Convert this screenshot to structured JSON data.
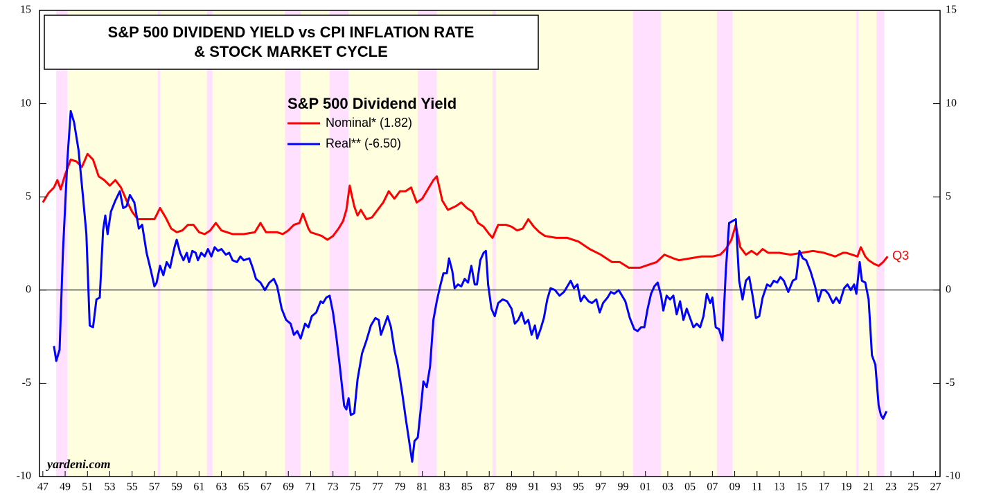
{
  "chart_data": {
    "type": "line",
    "title": [
      "S&P 500 DIVIDEND YIELD vs CPI INFLATION RATE",
      "& STOCK MARKET CYCLE"
    ],
    "legend_title": "S&P 500 Dividend Yield",
    "annotation": "Q3",
    "source": "yardeni.com",
    "xlim": [
      1946.7,
      2027.4
    ],
    "xticks": [
      {
        "value": 1947,
        "label": "47"
      },
      {
        "value": 1949,
        "label": "49"
      },
      {
        "value": 1951,
        "label": "51"
      },
      {
        "value": 1953,
        "label": "53"
      },
      {
        "value": 1955,
        "label": "55"
      },
      {
        "value": 1957,
        "label": "57"
      },
      {
        "value": 1959,
        "label": "59"
      },
      {
        "value": 1961,
        "label": "61"
      },
      {
        "value": 1963,
        "label": "63"
      },
      {
        "value": 1965,
        "label": "65"
      },
      {
        "value": 1967,
        "label": "67"
      },
      {
        "value": 1969,
        "label": "69"
      },
      {
        "value": 1971,
        "label": "71"
      },
      {
        "value": 1973,
        "label": "73"
      },
      {
        "value": 1975,
        "label": "75"
      },
      {
        "value": 1977,
        "label": "77"
      },
      {
        "value": 1979,
        "label": "79"
      },
      {
        "value": 1981,
        "label": "81"
      },
      {
        "value": 1983,
        "label": "83"
      },
      {
        "value": 1985,
        "label": "85"
      },
      {
        "value": 1987,
        "label": "87"
      },
      {
        "value": 1989,
        "label": "89"
      },
      {
        "value": 1991,
        "label": "91"
      },
      {
        "value": 1993,
        "label": "93"
      },
      {
        "value": 1995,
        "label": "95"
      },
      {
        "value": 1997,
        "label": "97"
      },
      {
        "value": 1999,
        "label": "99"
      },
      {
        "value": 2001,
        "label": "01"
      },
      {
        "value": 2003,
        "label": "03"
      },
      {
        "value": 2005,
        "label": "05"
      },
      {
        "value": 2007,
        "label": "07"
      },
      {
        "value": 2009,
        "label": "09"
      },
      {
        "value": 2011,
        "label": "11"
      },
      {
        "value": 2013,
        "label": "13"
      },
      {
        "value": 2015,
        "label": "15"
      },
      {
        "value": 2017,
        "label": "17"
      },
      {
        "value": 2019,
        "label": "19"
      },
      {
        "value": 2021,
        "label": "21"
      },
      {
        "value": 2023,
        "label": "23"
      },
      {
        "value": 2025,
        "label": "25"
      },
      {
        "value": 2027,
        "label": "27"
      }
    ],
    "ylim": [
      -10,
      15
    ],
    "yticks": [
      -10,
      -5,
      0,
      5,
      10,
      15
    ],
    "y2lim": [
      -10,
      15
    ],
    "y2ticks": [
      -10,
      -5,
      0,
      5,
      10,
      15
    ],
    "hline": 0,
    "background_band": {
      "color": "#ffffe0",
      "range": [
        1948.2,
        2022.4
      ]
    },
    "bands": {
      "color": "#ffe0ff",
      "ranges": [
        [
          1948.2,
          1949.2
        ],
        [
          1957.3,
          1957.5
        ],
        [
          1961.7,
          1962.2
        ],
        [
          1968.7,
          1970.1
        ],
        [
          1972.7,
          1974.4
        ],
        [
          1980.6,
          1982.3
        ],
        [
          1987.3,
          1987.6
        ],
        [
          1999.9,
          2002.4
        ],
        [
          2007.4,
          2008.8
        ],
        [
          2019.9,
          2020.1
        ],
        [
          2021.7,
          2022.4
        ]
      ]
    },
    "series": [
      {
        "name": "Nominal* (1.82)",
        "color": "#ff0000",
        "x": [
          1947.0,
          1947.5,
          1948.0,
          1948.3,
          1948.6,
          1949.0,
          1949.5,
          1950.0,
          1950.5,
          1951.0,
          1951.5,
          1952.0,
          1952.5,
          1953.0,
          1953.5,
          1954.0,
          1954.5,
          1955.0,
          1955.5,
          1956.0,
          1956.5,
          1957.0,
          1957.5,
          1958.0,
          1958.5,
          1959.0,
          1959.5,
          1960.0,
          1960.5,
          1961.0,
          1961.5,
          1962.0,
          1962.5,
          1963.0,
          1963.5,
          1964.0,
          1965.0,
          1966.0,
          1966.5,
          1967.0,
          1968.0,
          1968.5,
          1969.0,
          1969.5,
          1970.0,
          1970.3,
          1970.8,
          1971.0,
          1971.5,
          1972.0,
          1972.5,
          1973.0,
          1973.5,
          1973.9,
          1974.2,
          1974.5,
          1974.9,
          1975.2,
          1975.5,
          1976.0,
          1976.5,
          1977.0,
          1977.5,
          1978.0,
          1978.5,
          1979.0,
          1979.5,
          1980.0,
          1980.5,
          1981.0,
          1981.5,
          1982.0,
          1982.3,
          1982.8,
          1983.3,
          1984.0,
          1984.5,
          1985.0,
          1985.5,
          1986.0,
          1986.5,
          1987.0,
          1987.3,
          1987.8,
          1988.5,
          1989.0,
          1989.5,
          1990.0,
          1990.5,
          1991.0,
          1991.5,
          1992.0,
          1993.0,
          1994.0,
          1995.0,
          1996.0,
          1997.0,
          1998.0,
          1998.7,
          1999.5,
          2000.5,
          2001.0,
          2001.5,
          2002.0,
          2002.7,
          2003.5,
          2004.0,
          2005.0,
          2006.0,
          2007.0,
          2007.7,
          2008.2,
          2008.7,
          2009.1,
          2009.5,
          2010.0,
          2010.5,
          2011.0,
          2011.5,
          2012.0,
          2013.0,
          2014.0,
          2015.0,
          2016.0,
          2017.0,
          2018.0,
          2018.7,
          2019.0,
          2019.5,
          2020.0,
          2020.3,
          2020.7,
          2021.0,
          2021.5,
          2021.9,
          2022.3,
          2022.7
        ],
        "values": [
          4.7,
          5.2,
          5.5,
          5.9,
          5.4,
          6.2,
          7.0,
          6.9,
          6.6,
          7.3,
          7.0,
          6.1,
          5.9,
          5.6,
          5.9,
          5.5,
          4.8,
          4.2,
          3.8,
          3.8,
          3.8,
          3.8,
          4.4,
          3.9,
          3.3,
          3.1,
          3.2,
          3.5,
          3.5,
          3.1,
          3.0,
          3.2,
          3.6,
          3.2,
          3.1,
          3.0,
          3.0,
          3.1,
          3.6,
          3.1,
          3.1,
          3.0,
          3.2,
          3.5,
          3.6,
          4.1,
          3.3,
          3.1,
          3.0,
          2.9,
          2.7,
          2.9,
          3.3,
          3.7,
          4.3,
          5.6,
          4.5,
          4.0,
          4.3,
          3.8,
          3.9,
          4.3,
          4.7,
          5.3,
          4.9,
          5.3,
          5.3,
          5.5,
          4.7,
          4.9,
          5.4,
          5.9,
          6.1,
          4.8,
          4.3,
          4.5,
          4.7,
          4.4,
          4.2,
          3.6,
          3.4,
          3.0,
          2.8,
          3.5,
          3.5,
          3.4,
          3.2,
          3.3,
          3.8,
          3.4,
          3.1,
          2.9,
          2.8,
          2.8,
          2.6,
          2.2,
          1.9,
          1.5,
          1.5,
          1.2,
          1.2,
          1.3,
          1.4,
          1.5,
          1.9,
          1.7,
          1.6,
          1.7,
          1.8,
          1.8,
          1.9,
          2.2,
          2.7,
          3.5,
          2.3,
          1.9,
          2.1,
          1.9,
          2.2,
          2.0,
          2.0,
          1.9,
          2.0,
          2.1,
          2.0,
          1.8,
          2.0,
          2.0,
          1.9,
          1.8,
          2.3,
          1.8,
          1.6,
          1.4,
          1.3,
          1.5,
          1.8
        ]
      },
      {
        "name": "Real** (-6.50)",
        "color": "#0000ff",
        "x": [
          1948.0,
          1948.2,
          1948.5,
          1948.8,
          1949.2,
          1949.5,
          1949.8,
          1950.2,
          1950.6,
          1950.9,
          1951.2,
          1951.5,
          1951.8,
          1952.1,
          1952.4,
          1952.6,
          1952.8,
          1953.1,
          1953.5,
          1953.9,
          1954.2,
          1954.5,
          1954.8,
          1955.2,
          1955.6,
          1955.9,
          1956.3,
          1956.7,
          1957.0,
          1957.2,
          1957.5,
          1957.8,
          1958.1,
          1958.4,
          1958.8,
          1959.0,
          1959.3,
          1959.6,
          1959.9,
          1960.1,
          1960.4,
          1960.7,
          1960.9,
          1961.2,
          1961.5,
          1961.8,
          1962.1,
          1962.4,
          1962.7,
          1963.0,
          1963.4,
          1963.7,
          1964.0,
          1964.4,
          1964.7,
          1965.0,
          1965.5,
          1965.8,
          1966.1,
          1966.5,
          1966.9,
          1967.3,
          1967.7,
          1968.0,
          1968.4,
          1968.8,
          1969.2,
          1969.5,
          1969.8,
          1970.1,
          1970.5,
          1970.8,
          1971.1,
          1971.5,
          1971.9,
          1972.1,
          1972.4,
          1972.7,
          1973.0,
          1973.3,
          1973.6,
          1974.0,
          1974.2,
          1974.4,
          1974.6,
          1974.9,
          1975.2,
          1975.6,
          1976.0,
          1976.4,
          1976.8,
          1977.1,
          1977.3,
          1977.6,
          1977.9,
          1978.2,
          1978.5,
          1978.8,
          1979.2,
          1979.5,
          1979.8,
          1980.1,
          1980.3,
          1980.6,
          1980.9,
          1981.1,
          1981.4,
          1981.7,
          1982.0,
          1982.3,
          1982.6,
          1982.9,
          1983.2,
          1983.4,
          1983.7,
          1983.9,
          1984.2,
          1984.5,
          1984.8,
          1985.1,
          1985.4,
          1985.7,
          1985.9,
          1986.2,
          1986.5,
          1986.7,
          1986.9,
          1987.2,
          1987.5,
          1987.8,
          1988.2,
          1988.6,
          1989.0,
          1989.3,
          1989.6,
          1989.9,
          1990.2,
          1990.5,
          1990.8,
          1991.1,
          1991.3,
          1991.6,
          1991.9,
          1992.2,
          1992.5,
          1992.9,
          1993.3,
          1993.7,
          1994.0,
          1994.3,
          1994.6,
          1994.9,
          1995.2,
          1995.5,
          1995.9,
          1996.2,
          1996.6,
          1996.9,
          1997.2,
          1997.6,
          1997.9,
          1998.2,
          1998.6,
          1998.9,
          1999.2,
          1999.6,
          2000.0,
          2000.3,
          2000.6,
          2000.9,
          2001.2,
          2001.5,
          2001.8,
          2002.1,
          2002.4,
          2002.6,
          2002.9,
          2003.2,
          2003.5,
          2003.8,
          2004.1,
          2004.4,
          2004.7,
          2005.0,
          2005.3,
          2005.6,
          2005.9,
          2006.2,
          2006.5,
          2006.8,
          2007.0,
          2007.3,
          2007.6,
          2007.9,
          2008.2,
          2008.5,
          2008.8,
          2009.1,
          2009.4,
          2009.7,
          2010.0,
          2010.3,
          2010.6,
          2010.9,
          2011.2,
          2011.5,
          2011.9,
          2012.2,
          2012.5,
          2012.8,
          2013.1,
          2013.4,
          2013.8,
          2014.2,
          2014.5,
          2014.8,
          2015.1,
          2015.4,
          2015.8,
          2016.2,
          2016.5,
          2016.8,
          2017.1,
          2017.4,
          2017.8,
          2018.1,
          2018.4,
          2018.8,
          2019.1,
          2019.4,
          2019.7,
          2019.9,
          2020.2,
          2020.4,
          2020.7,
          2021.0,
          2021.3,
          2021.6,
          2021.9,
          2022.1,
          2022.3,
          2022.6
        ],
        "values": [
          -3.0,
          -3.8,
          -3.2,
          2.0,
          7.0,
          9.6,
          9.0,
          7.5,
          5.0,
          3.0,
          -1.9,
          -2.0,
          -0.5,
          -0.4,
          3.2,
          4.0,
          3.0,
          4.2,
          4.8,
          5.3,
          4.4,
          4.5,
          5.1,
          4.7,
          3.3,
          3.5,
          2.0,
          1.0,
          0.2,
          0.4,
          1.3,
          0.8,
          1.5,
          1.2,
          2.3,
          2.7,
          2.0,
          1.6,
          2.0,
          1.5,
          2.1,
          2.0,
          1.6,
          2.0,
          1.8,
          2.2,
          1.8,
          2.3,
          2.1,
          2.2,
          1.9,
          2.0,
          1.6,
          1.5,
          1.8,
          1.6,
          1.7,
          1.2,
          0.6,
          0.4,
          0.0,
          0.4,
          0.6,
          0.2,
          -1.0,
          -1.6,
          -1.8,
          -2.4,
          -2.2,
          -2.6,
          -1.8,
          -2.0,
          -1.4,
          -1.2,
          -0.6,
          -0.7,
          -0.4,
          -0.3,
          -1.2,
          -2.5,
          -4.0,
          -6.2,
          -6.4,
          -5.8,
          -6.7,
          -6.6,
          -4.8,
          -3.4,
          -2.7,
          -1.9,
          -1.5,
          -1.6,
          -2.4,
          -1.9,
          -1.4,
          -2.0,
          -3.2,
          -4.0,
          -5.5,
          -6.8,
          -8.0,
          -9.2,
          -8.1,
          -7.9,
          -6.2,
          -4.9,
          -5.2,
          -4.1,
          -1.6,
          -0.6,
          0.2,
          0.9,
          0.9,
          1.7,
          1.0,
          0.1,
          0.3,
          0.2,
          0.6,
          0.4,
          1.3,
          0.3,
          0.3,
          1.6,
          2.0,
          2.1,
          0.3,
          -1.0,
          -1.4,
          -0.7,
          -0.5,
          -0.6,
          -1.0,
          -1.8,
          -1.6,
          -1.2,
          -1.8,
          -1.6,
          -2.4,
          -1.9,
          -2.6,
          -2.1,
          -1.5,
          -0.5,
          0.1,
          0.0,
          -0.3,
          -0.1,
          0.2,
          0.5,
          0.1,
          0.3,
          -0.6,
          -0.3,
          -0.6,
          -0.7,
          -0.5,
          -1.2,
          -0.7,
          -0.4,
          -0.1,
          -0.2,
          0.0,
          -0.3,
          -0.6,
          -1.5,
          -2.1,
          -2.2,
          -2.0,
          -2.0,
          -1.0,
          -0.2,
          0.2,
          0.4,
          -0.3,
          -1.1,
          -0.3,
          -0.5,
          -0.3,
          -1.3,
          -0.6,
          -1.6,
          -1.0,
          -1.5,
          -2.0,
          -1.8,
          -2.0,
          -1.4,
          -0.2,
          -0.7,
          -0.4,
          -2.0,
          -2.1,
          -2.7,
          1.0,
          3.6,
          3.7,
          3.8,
          0.5,
          -0.5,
          0.5,
          0.7,
          -0.3,
          -1.5,
          -1.4,
          -0.4,
          0.3,
          0.2,
          0.5,
          0.4,
          0.7,
          0.5,
          -0.1,
          0.5,
          0.6,
          2.1,
          1.7,
          1.6,
          1.0,
          0.2,
          -0.6,
          0.0,
          0.0,
          -0.2,
          -0.7,
          -0.4,
          -0.7,
          0.1,
          0.3,
          0.0,
          0.3,
          -0.2,
          1.5,
          0.5,
          0.4,
          -0.5,
          -3.5,
          -4.0,
          -6.2,
          -6.7,
          -6.9,
          -6.5
        ]
      }
    ]
  }
}
